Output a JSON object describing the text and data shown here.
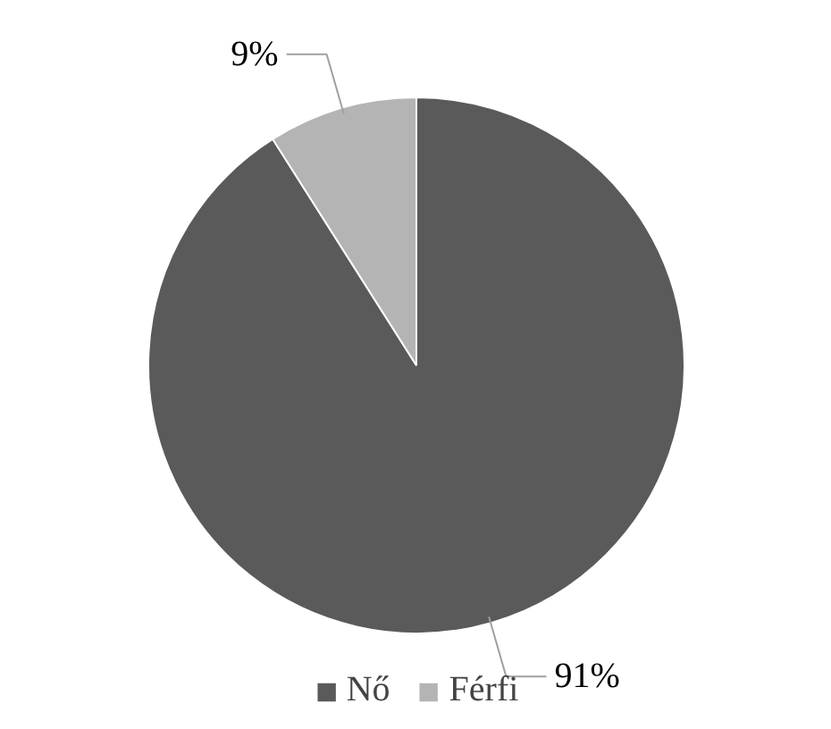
{
  "chart_data": {
    "type": "pie",
    "categories": [
      "Nő",
      "Férfi"
    ],
    "values": [
      91,
      9
    ],
    "colors": [
      "#5a5a5a",
      "#b4b4b4"
    ],
    "value_labels": [
      "91%",
      "9%"
    ],
    "legend": "bottom"
  }
}
